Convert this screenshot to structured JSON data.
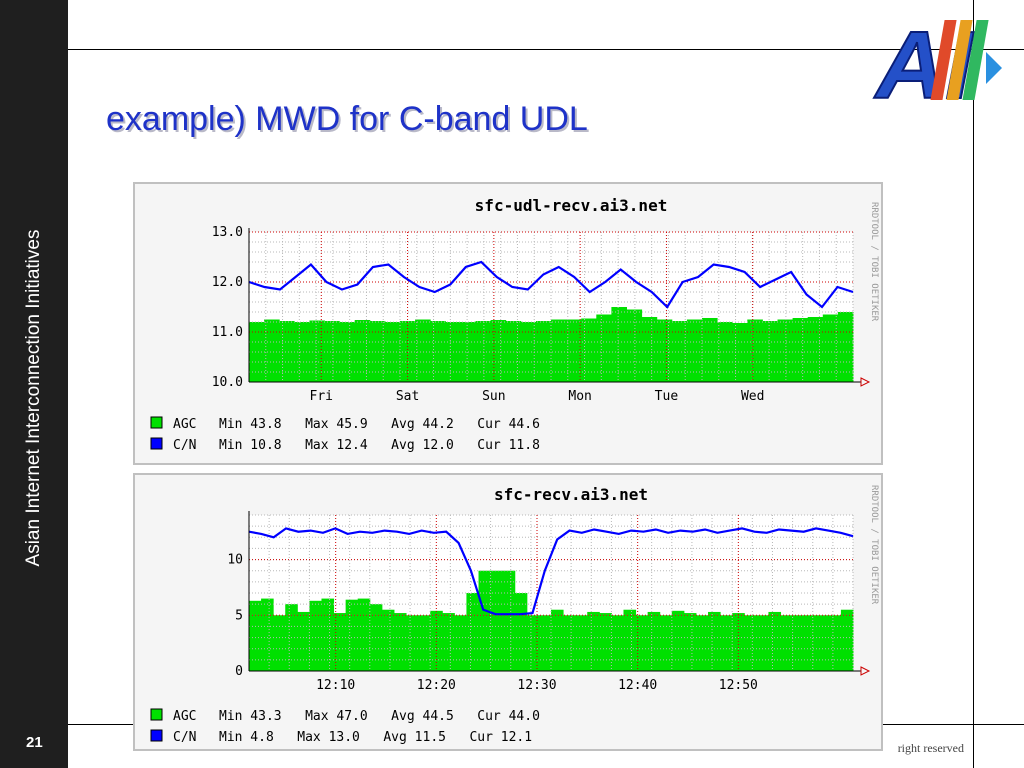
{
  "slide": {
    "title": "example) MWD for C-band UDL",
    "org_name": "Asian Internet Interconnection Initiatives",
    "page_number": "21",
    "copyright": "right reserved",
    "logo_text": "AI"
  },
  "colors": {
    "sidebar": "#1f1f1f",
    "title": "#1e32c8",
    "agc": "#00e000",
    "cn": "#0000ff",
    "grid_major": "#cc0000",
    "grid_minor": "#cccccc"
  },
  "chart_data": [
    {
      "type": "area",
      "title": "sfc-udl-recv.ai3.net",
      "watermark": "RRDTOOL / TOBI OETIKER",
      "ylim": [
        10.0,
        13.0
      ],
      "y_ticks": [
        "10.0",
        "11.0",
        "12.0",
        "13.0"
      ],
      "x_ticks": [
        "Fri",
        "Sat",
        "Sun",
        "Mon",
        "Tue",
        "Wed"
      ],
      "series": [
        {
          "name": "AGC",
          "style": "area",
          "color": "#00e000",
          "stats": "Min 43.8   Max 45.9   Avg 44.2   Cur 44.6",
          "values": [
            11.2,
            11.25,
            11.22,
            11.2,
            11.23,
            11.22,
            11.2,
            11.24,
            11.22,
            11.2,
            11.22,
            11.25,
            11.22,
            11.2,
            11.2,
            11.22,
            11.24,
            11.22,
            11.2,
            11.22,
            11.25,
            11.25,
            11.27,
            11.35,
            11.5,
            11.45,
            11.3,
            11.25,
            11.22,
            11.25,
            11.28,
            11.2,
            11.18,
            11.25,
            11.22,
            11.25,
            11.28,
            11.3,
            11.35,
            11.4
          ]
        },
        {
          "name": "C/N",
          "style": "line",
          "color": "#0000ff",
          "stats": "Min 10.8   Max 12.4   Avg 12.0   Cur 11.8",
          "values": [
            12.0,
            11.9,
            11.85,
            12.1,
            12.35,
            12.0,
            11.85,
            11.95,
            12.3,
            12.35,
            12.1,
            11.9,
            11.8,
            11.95,
            12.3,
            12.4,
            12.1,
            11.9,
            11.85,
            12.15,
            12.3,
            12.1,
            11.8,
            12.0,
            12.25,
            12.0,
            11.8,
            11.5,
            12.0,
            12.1,
            12.35,
            12.3,
            12.2,
            11.9,
            12.05,
            12.2,
            11.75,
            11.5,
            11.9,
            11.8
          ]
        }
      ]
    },
    {
      "type": "area",
      "title": "sfc-recv.ai3.net",
      "watermark": "RRDTOOL / TOBI OETIKER",
      "ylim": [
        0,
        14
      ],
      "y_ticks": [
        "0",
        "5",
        "10"
      ],
      "x_ticks": [
        "12:10",
        "12:20",
        "12:30",
        "12:40",
        "12:50"
      ],
      "series": [
        {
          "name": "AGC",
          "style": "area",
          "color": "#00e000",
          "stats": "Min 43.3   Max 47.0   Avg 44.5   Cur 44.0",
          "values": [
            6.3,
            6.5,
            5.0,
            6.0,
            5.3,
            6.3,
            6.5,
            5.2,
            6.4,
            6.5,
            6.0,
            5.5,
            5.2,
            5.0,
            5.0,
            5.4,
            5.2,
            5.0,
            7.0,
            9.0,
            9.0,
            9.0,
            7.0,
            5.0,
            5.0,
            5.5,
            5.0,
            5.0,
            5.3,
            5.2,
            5.0,
            5.5,
            5.0,
            5.3,
            5.0,
            5.4,
            5.2,
            5.0,
            5.3,
            5.0,
            5.2,
            5.0,
            5.0,
            5.3,
            5.0,
            5.0,
            5.0,
            5.0,
            5.0,
            5.5
          ]
        },
        {
          "name": "C/N",
          "style": "line",
          "color": "#0000ff",
          "stats": "Min 4.8   Max 13.0   Avg 11.5   Cur 12.1",
          "values": [
            12.5,
            12.3,
            12.0,
            12.8,
            12.5,
            12.6,
            12.4,
            12.8,
            12.3,
            12.5,
            12.4,
            12.6,
            12.5,
            12.3,
            12.6,
            12.4,
            12.5,
            11.5,
            9.0,
            5.5,
            5.1,
            5.1,
            5.1,
            5.2,
            9.0,
            11.8,
            12.6,
            12.4,
            12.7,
            12.5,
            12.3,
            12.6,
            12.5,
            12.7,
            12.4,
            12.6,
            12.5,
            12.7,
            12.4,
            12.6,
            12.8,
            12.5,
            12.4,
            12.7,
            12.6,
            12.5,
            12.8,
            12.6,
            12.4,
            12.1
          ]
        }
      ]
    }
  ]
}
